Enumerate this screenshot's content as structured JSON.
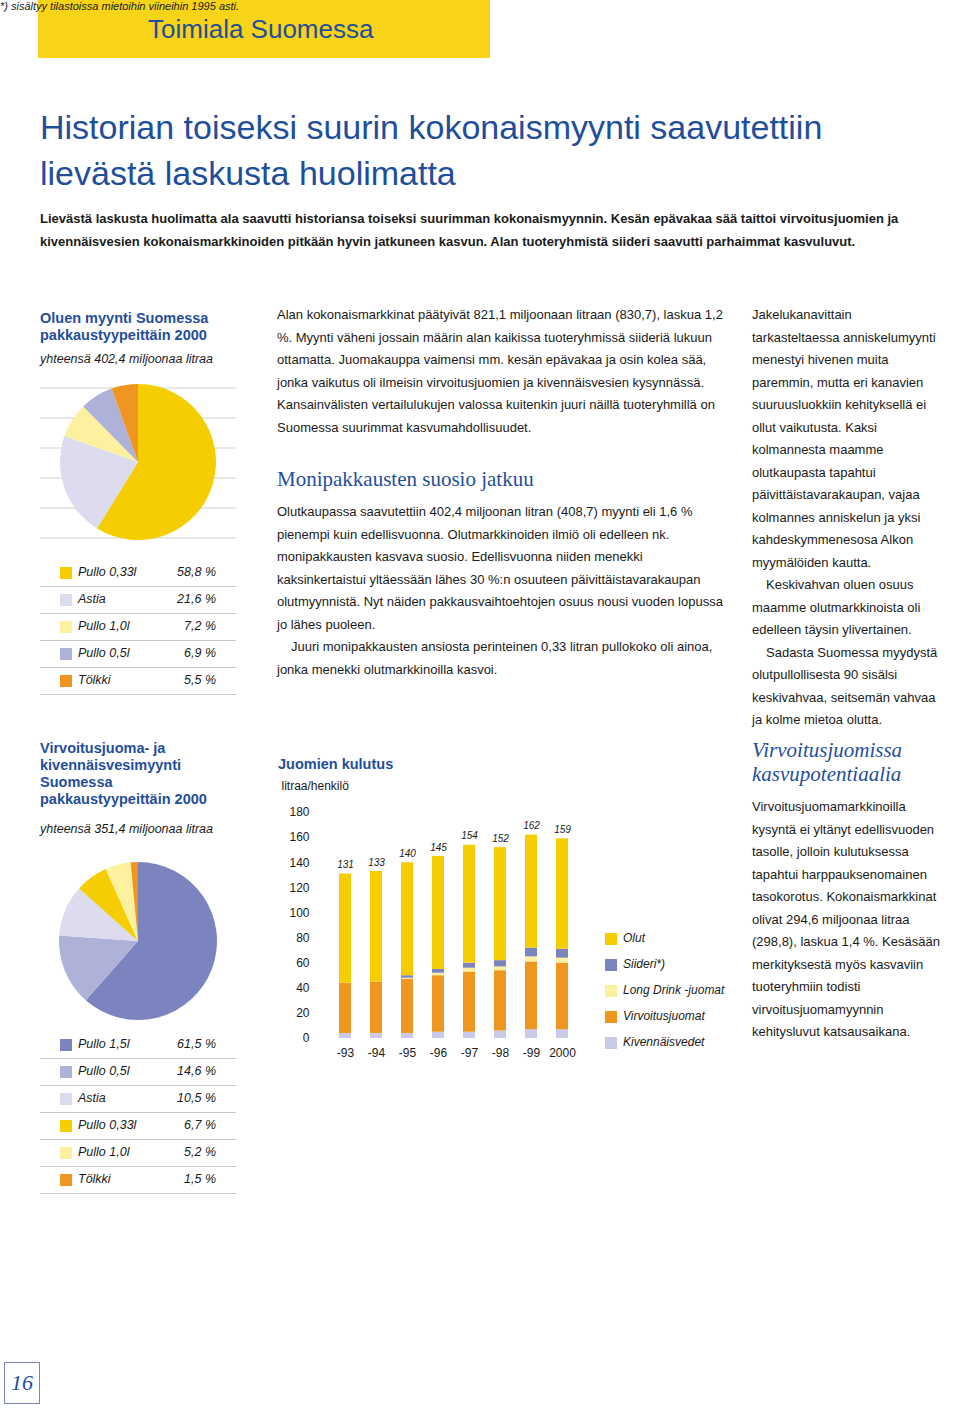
{
  "header": {
    "section": "Toimiala Suomessa",
    "title": "Historian toiseksi suurin kokonaismyynti saavutettiin lievästä laskusta huolimatta",
    "lead": "Lievästä laskusta huolimatta ala saavutti historiansa toiseksi suurimman kokonaismyynnin. Kesän epävakaa sää taittoi virvoitusjuomien ja kivennäisvesien kokonaismarkkinoiden pitkään hyvin jatkuneen kasvun. Alan tuoteryhmistä siideri saavutti parhaimmat kasvuluvut."
  },
  "article": {
    "middle": {
      "paragraphs": [
        "Alan kokonaismarkkinat päätyivät 821,1 miljoonaan litraan (830,7), laskua 1,2 %. Myynti väheni jossain määrin alan kaikissa tuoteryhmissä siideriä lukuun ottamatta. Juomakauppa vaimensi mm. kesän epävakaa ja osin kolea sää, jonka vaikutus oli ilmeisin virvoitusjuomien ja kivennäisvesien kysynnässä. Kansainvälisten vertailulukujen valossa kuitenkin juuri näillä tuoteryhmillä on Suomessa suurimmat kasvumahdollisuudet."
      ],
      "heading": "Monipakkausten suosio jatkuu",
      "paragraphs_after_heading": [
        "Olutkaupassa saavutettiin 402,4 miljoonan litran (408,7) myynti eli 1,6 % pienempi kuin edellisvuonna. Olutmarkkinoiden ilmiö oli edelleen nk. monipakkausten kasvava suosio. Edellisvuonna niiden menekki kaksinkertaistui yltäessään lähes 30 %:n osuuteen päivittäistavarakaupan olutmyynnistä. Nyt näiden pakkausvaihtoehtojen osuus nousi vuoden lopussa jo lähes puoleen.",
        "Juuri monipakkausten ansiosta perinteinen 0,33 litran pullokoko oli ainoa, jonka menekki olutmarkkinoilla kasvoi."
      ]
    },
    "right": {
      "paragraphs": [
        "Jakelukanavittain tarkasteltaessa anniskelumyynti menestyi hivenen muita paremmin, mutta eri kanavien suuruusluokkiin kehityksellä ei ollut vaikutusta. Kaksi kolmannesta maamme olutkaupasta tapahtui päivittäistavarakaupan, vajaa kolmannes anniskelun ja yksi kahdeskymmenesosa Alkon myymälöiden kautta.",
        "Keskivahvan oluen osuus maamme olutmarkkinoista oli edelleen täysin ylivertainen.",
        "Sadasta Suomessa myydystä olutpullollisesta 90 sisälsi keskivahvaa, seitsemän vahvaa ja kolme mietoa olutta."
      ]
    },
    "bottom_right": {
      "heading": "Virvoitusjuomissa kasvupotentiaalia",
      "paragraphs": [
        "Virvoitusjuomamarkkinoilla kysyntä ei yltänyt edellisvuoden tasolle, jolloin kulutuksessa tapahtui harppauksenomainen tasokorotus. Kokonaismarkkinat olivat 294,6 miljoonaa litraa (298,8), laskua 1,4 %. Kesäsään merkityksestä myös kasvaviin tuoteryhmiin todisti virvoitusjuomamyynnin kehitysluvut katsausaikana."
      ]
    }
  },
  "chart_data": [
    {
      "type": "pie",
      "title": "Oluen myynti Suomessa pakkaustyypeittäin 2000",
      "subtitle": "yhteensä 402,4 miljoonaa litraa",
      "categories": [
        "Pullo 0,33l",
        "Astia",
        "Pullo 1,0l",
        "Pullo 0,5l",
        "Tölkki"
      ],
      "values": [
        58.8,
        21.6,
        7.2,
        6.9,
        5.5
      ],
      "value_labels": [
        "58,8 %",
        "21,6 %",
        "7,2 %",
        "6,9 %",
        "5,5 %"
      ],
      "colors": [
        "#f5cd00",
        "#dcdcee",
        "#fdf1a0",
        "#aeb2d8",
        "#ef9620"
      ]
    },
    {
      "type": "pie",
      "title": "Virvoitusjuoma- ja kivennäisvesimyynti Suomessa pakkaustyypeittäin 2000",
      "subtitle": "yhteensä 351,4 miljoonaa litraa",
      "categories": [
        "Pullo 1,5l",
        "Pullo 0,5l",
        "Astia",
        "Pullo 0,33l",
        "Pullo 1,0l",
        "Tölkki"
      ],
      "values": [
        61.5,
        14.6,
        10.5,
        6.7,
        5.2,
        1.5
      ],
      "value_labels": [
        "61,5 %",
        "14,6 %",
        "10,5 %",
        "6,7 %",
        "5,2 %",
        "1,5 %"
      ],
      "colors": [
        "#7b84bf",
        "#aeb2d8",
        "#dcdcee",
        "#f5cd00",
        "#fdf1a0",
        "#ef9620"
      ]
    },
    {
      "type": "bar",
      "stacked": true,
      "title": "Juomien kulutus",
      "ylabel": "litraa/henkilö",
      "categories": [
        "-93",
        "-94",
        "-95",
        "-96",
        "-97",
        "-98",
        "-99",
        "2000"
      ],
      "series": [
        {
          "name": "Olut",
          "color": "#f5cd00",
          "values": [
            87,
            88,
            90,
            90,
            94,
            90,
            90,
            88
          ]
        },
        {
          "name": "Siideri*)",
          "color": "#7b84bf",
          "values": [
            0,
            0,
            2,
            3,
            4,
            5,
            7,
            7
          ]
        },
        {
          "name": "Long Drink -juomat",
          "color": "#fdf1a0",
          "values": [
            0,
            0,
            1,
            2,
            3,
            3,
            4,
            4
          ]
        },
        {
          "name": "Virvoitusjuomat",
          "color": "#ef9620",
          "values": [
            40,
            41,
            43,
            45,
            48,
            48,
            54,
            53
          ]
        },
        {
          "name": "Kivennäisvedet",
          "color": "#c9cbe6",
          "values": [
            4,
            4,
            4,
            5,
            5,
            6,
            7,
            7
          ]
        }
      ],
      "totals": [
        131,
        133,
        140,
        145,
        154,
        152,
        162,
        159
      ],
      "ylim": [
        0,
        180
      ],
      "yticks": [
        0,
        20,
        40,
        60,
        80,
        100,
        120,
        140,
        160,
        180
      ],
      "legend": "right",
      "footnote": "*) sisältyy tilastoissa mietoihin viineihin 1995 asti."
    }
  ],
  "page_number": 16
}
